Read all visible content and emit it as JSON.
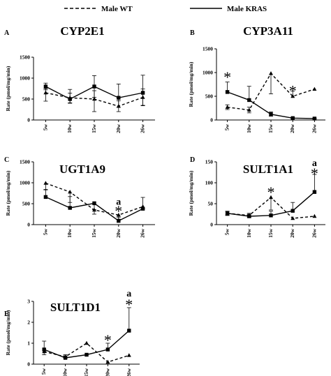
{
  "legend": {
    "wt_label": "Male WT",
    "kras_label": "Male KRAS"
  },
  "chart_data": [
    {
      "type": "line",
      "letter": "A",
      "title": "CYP2E1",
      "ylabel": "Rate (pmol/mg/min)",
      "categories": [
        "5w",
        "10w",
        "15w",
        "20w",
        "26w"
      ],
      "ylim": [
        0,
        1500
      ],
      "yticks": [
        0,
        500,
        1000,
        1500
      ],
      "series": [
        {
          "name": "Male WT",
          "values": [
            650,
            530,
            500,
            330,
            540
          ],
          "err_up": [
            100,
            110,
            200,
            130,
            200
          ],
          "err_down": [
            200,
            120,
            300,
            130,
            200
          ]
        },
        {
          "name": "Male KRAS",
          "values": [
            800,
            500,
            800,
            530,
            650
          ],
          "err_up": [
            80,
            230,
            260,
            330,
            420
          ],
          "err_down": [
            80,
            100,
            260,
            230,
            300
          ]
        }
      ],
      "annotations": []
    },
    {
      "type": "line",
      "letter": "B",
      "title": "CYP3A11",
      "ylabel": "Rate (pmol/mg/min)",
      "categories": [
        "5w",
        "10w",
        "15w",
        "20w",
        "26w"
      ],
      "ylim": [
        0,
        1500
      ],
      "yticks": [
        0,
        500,
        1000,
        1500
      ],
      "series": [
        {
          "name": "Male WT",
          "values": [
            270,
            210,
            980,
            500,
            650
          ],
          "err_up": [
            50,
            60,
            0,
            110,
            0
          ],
          "err_down": [
            50,
            60,
            430,
            0,
            0
          ]
        },
        {
          "name": "Male KRAS",
          "values": [
            590,
            420,
            120,
            40,
            30
          ],
          "err_up": [
            210,
            290,
            50,
            10,
            10
          ],
          "err_down": [
            0,
            0,
            40,
            10,
            10
          ]
        }
      ],
      "annotations": [
        {
          "x": "5w",
          "text": "*",
          "y": 930
        },
        {
          "x": "20w",
          "text": "*",
          "y": 640
        }
      ]
    },
    {
      "type": "line",
      "letter": "C",
      "title": "UGT1A9",
      "ylabel": "Rate (pmol/mg/min)",
      "categories": [
        "5w",
        "10w",
        "15w",
        "20w",
        "26w"
      ],
      "ylim": [
        0,
        1500
      ],
      "yticks": [
        0,
        500,
        1000,
        1500
      ],
      "series": [
        {
          "name": "Male WT",
          "values": [
            990,
            780,
            350,
            230,
            430
          ],
          "err_up": [
            0,
            0,
            0,
            0,
            0
          ],
          "err_down": [
            150,
            250,
            100,
            100,
            50
          ]
        },
        {
          "name": "Male KRAS",
          "values": [
            660,
            400,
            510,
            90,
            380
          ],
          "err_up": [
            170,
            270,
            0,
            90,
            270
          ],
          "err_down": [
            0,
            0,
            150,
            0,
            0
          ]
        }
      ],
      "annotations": [
        {
          "x": "20w",
          "text": "*",
          "y": 350
        },
        {
          "x": "20w",
          "text": "a",
          "y": 560
        }
      ]
    },
    {
      "type": "line",
      "letter": "D",
      "title": "SULT1A1",
      "ylabel": "Rate (pmol/mg/min)",
      "categories": [
        "5w",
        "10w",
        "15w",
        "20w",
        "26w"
      ],
      "ylim": [
        0,
        150
      ],
      "yticks": [
        0,
        50,
        100,
        150
      ],
      "series": [
        {
          "name": "Male WT",
          "values": [
            27,
            22,
            65,
            15,
            20
          ],
          "err_up": [
            5,
            5,
            0,
            0,
            0
          ],
          "err_down": [
            5,
            5,
            30,
            0,
            0
          ]
        },
        {
          "name": "Male KRAS",
          "values": [
            27,
            20,
            22,
            33,
            78
          ],
          "err_up": [
            5,
            5,
            10,
            20,
            42
          ],
          "err_down": [
            5,
            3,
            0,
            0,
            0
          ]
        }
      ],
      "annotations": [
        {
          "x": "15w",
          "text": "*",
          "y": 80
        },
        {
          "x": "26w",
          "text": "*",
          "y": 125
        },
        {
          "x": "26w",
          "text": "a",
          "y": 148
        }
      ]
    },
    {
      "type": "line",
      "letter": "E",
      "title": "SULT1D1",
      "ylabel": "Rate (pmol/mg/min)",
      "categories": [
        "5w",
        "10w",
        "15w",
        "20w",
        "26w"
      ],
      "ylim": [
        0,
        3
      ],
      "yticks": [
        0,
        1,
        2,
        3
      ],
      "series": [
        {
          "name": "Male WT",
          "values": [
            0.6,
            0.35,
            1.0,
            0.1,
            0.42
          ],
          "err_up": [
            0,
            0.05,
            0,
            0,
            0
          ],
          "err_down": [
            0.15,
            0.05,
            0,
            0,
            0
          ]
        },
        {
          "name": "Male KRAS",
          "values": [
            0.7,
            0.3,
            0.45,
            0.7,
            1.6
          ],
          "err_up": [
            0.4,
            0.15,
            0,
            0.3,
            1.1
          ],
          "err_down": [
            0,
            0,
            0,
            0,
            0
          ]
        }
      ],
      "annotations": [
        {
          "x": "20w",
          "text": "*",
          "y": 1.2
        },
        {
          "x": "26w",
          "text": "*",
          "y": 2.9
        },
        {
          "x": "26w",
          "text": "a",
          "y": 3.4
        }
      ]
    }
  ]
}
